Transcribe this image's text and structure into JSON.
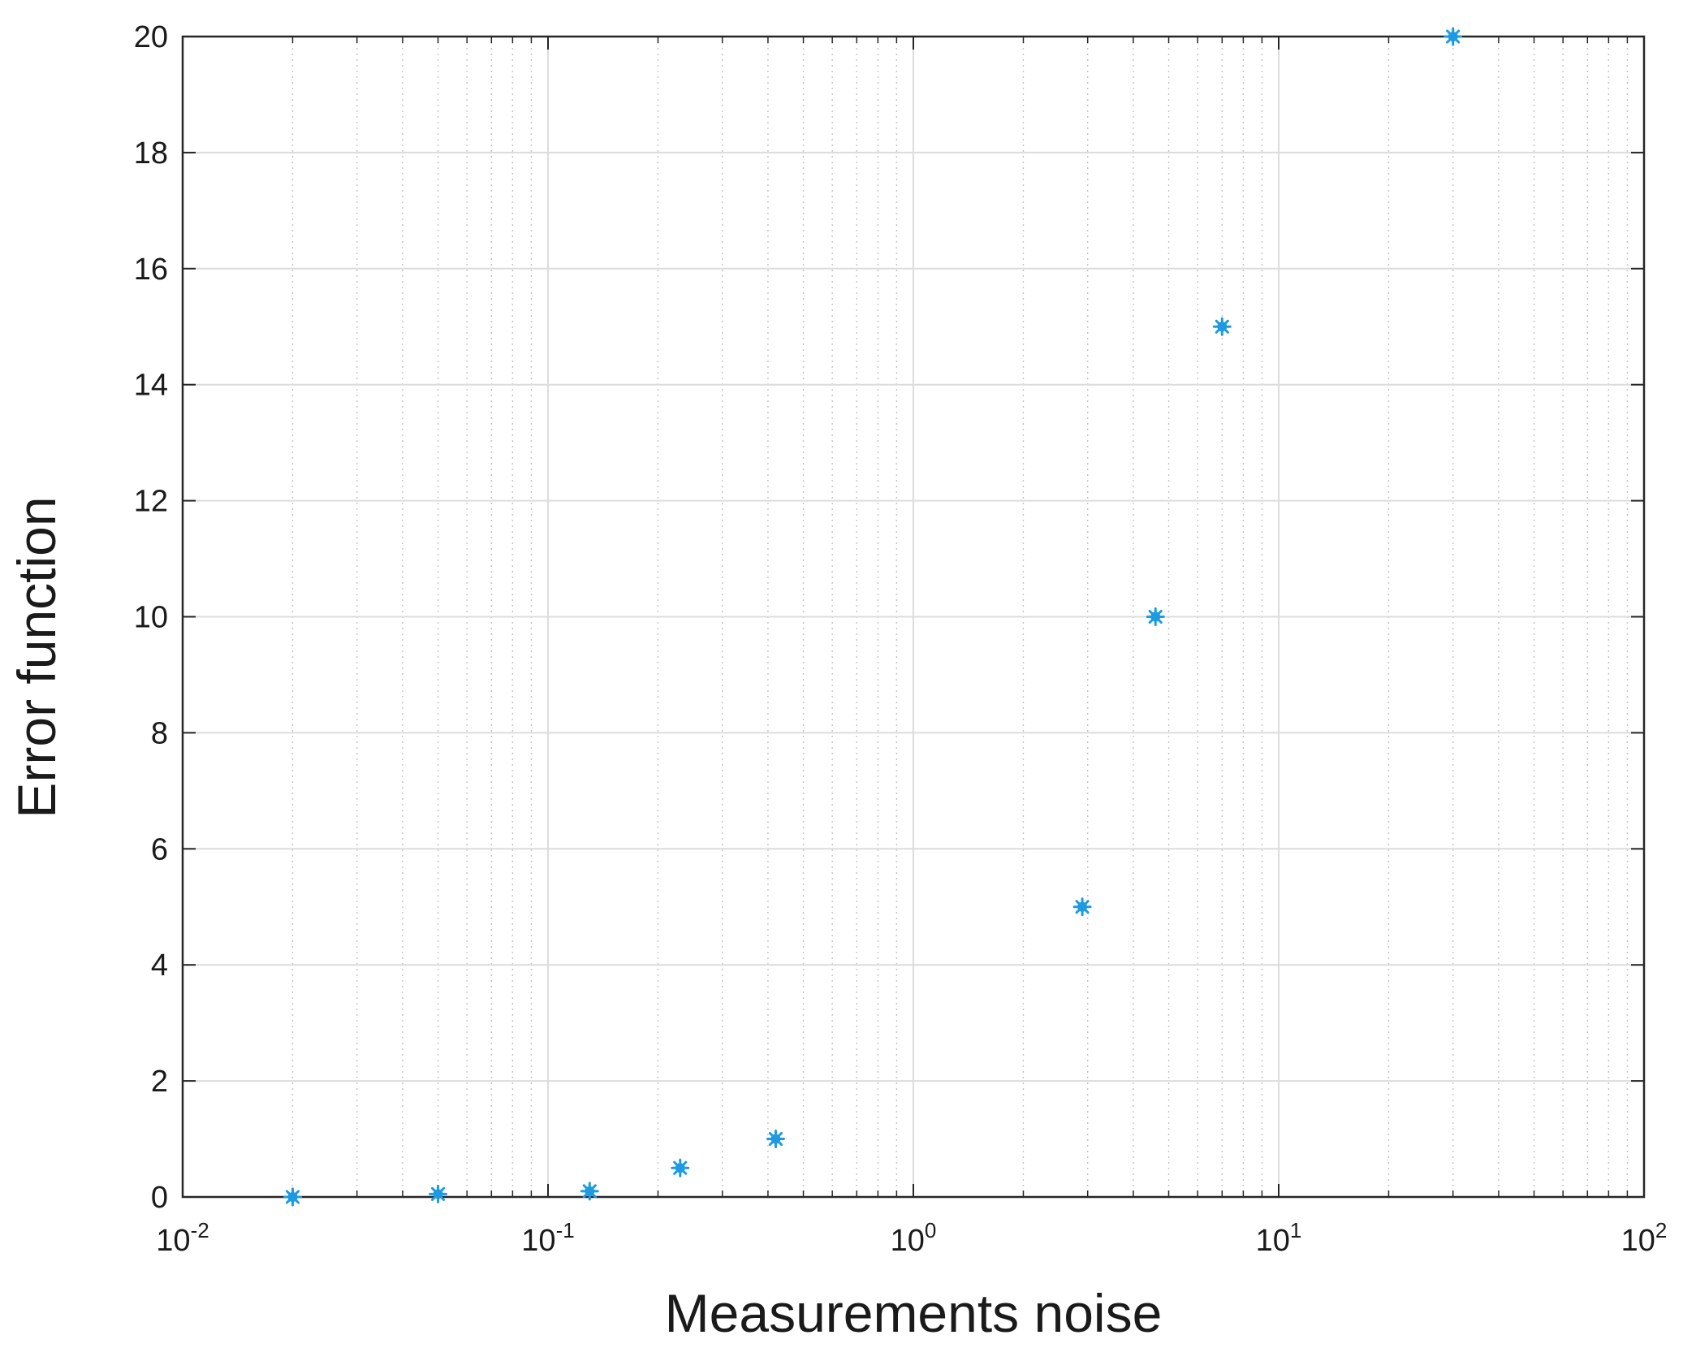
{
  "chart_data": {
    "type": "scatter",
    "title": "",
    "xlabel": "Measurements noise",
    "ylabel": "Error function",
    "x_scale": "log",
    "xlim": [
      0.01,
      100
    ],
    "ylim": [
      0,
      20
    ],
    "x_ticks": [
      {
        "base": "10",
        "exp": "-2"
      },
      {
        "base": "10",
        "exp": "-1"
      },
      {
        "base": "10",
        "exp": "0"
      },
      {
        "base": "10",
        "exp": "1"
      },
      {
        "base": "10",
        "exp": "2"
      }
    ],
    "y_ticks": [
      "0",
      "2",
      "4",
      "6",
      "8",
      "10",
      "12",
      "14",
      "16",
      "18",
      "20"
    ],
    "grid": true,
    "legend": "none",
    "marker_color": "#1e9be0",
    "series": [
      {
        "points": [
          {
            "x": 0.02,
            "y": 0
          },
          {
            "x": 0.05,
            "y": 0.05
          },
          {
            "x": 0.13,
            "y": 0.1
          },
          {
            "x": 0.23,
            "y": 0.5
          },
          {
            "x": 0.42,
            "y": 1
          },
          {
            "x": 2.9,
            "y": 5
          },
          {
            "x": 4.6,
            "y": 10
          },
          {
            "x": 7.0,
            "y": 15
          },
          {
            "x": 30,
            "y": 20
          }
        ]
      }
    ]
  }
}
